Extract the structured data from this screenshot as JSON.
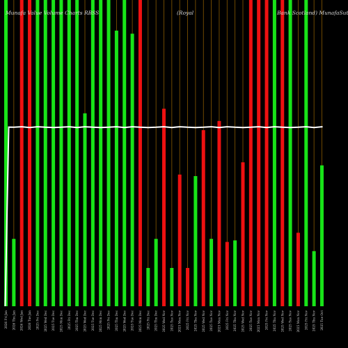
{
  "chart_data": {
    "type": "bar",
    "title_left": "Munafa Value Volume Charts RBSS",
    "title_center": "(Royal",
    "title_right": "Bank Scotland) MunafaSutra.com",
    "colors": {
      "up": "#18e418",
      "down": "#ee1111",
      "line": "#ffffff",
      "grid": "#8a5a00",
      "background": "#000000"
    },
    "ylim": [
      0,
      100
    ],
    "categories": [
      "2026 Fri Jan",
      "2026 Thu Jan",
      "2026 Wed Jan",
      "2026 Tue Jan",
      "2025 Fri Dec",
      "2025 Wed Dec",
      "2025 Tue Dec",
      "2025 Mon Dec",
      "2025 Fri Dec",
      "2025 Thu Dec",
      "2025 Wed Dec",
      "2025 Tue Dec",
      "2025 Mon Dec",
      "2025 Fri Dec",
      "2025 Thu Dec",
      "2025 Wed Dec",
      "2025 Tue Dec",
      "2025 Mon Dec",
      "2025 Fri Dec",
      "2025 Thu Dec",
      "2025 Wed Nov",
      "2025 Tue Nov",
      "2025 Mon Nov",
      "2025 Fri Nov",
      "2025 Thu Nov",
      "2025 Wed Nov",
      "2025 Tue Nov",
      "2025 Mon Nov",
      "2025 Fri Nov",
      "2025 Thu Nov",
      "2025 Wed Nov",
      "2025 Tue Nov",
      "2025 Mon Nov",
      "2025 Fri Nov",
      "2025 Thu Nov",
      "2025 Wed Nov",
      "2025 Tue Nov",
      "2025 Mon Nov",
      "2025 Fri Nov",
      "2025 Thu Nov",
      "2025 Tue Oct"
    ],
    "values": [
      100,
      22,
      100,
      100,
      100,
      100,
      100,
      100,
      100,
      100,
      63,
      100,
      100,
      100,
      90,
      100,
      89,
      100,
      12.5,
      22,
      64.5,
      12.5,
      43,
      12.5,
      42.5,
      57.5,
      22,
      60.5,
      21,
      21.5,
      47,
      100,
      100,
      100,
      100,
      100,
      100,
      24,
      100,
      18,
      46
    ],
    "up": [
      true,
      true,
      false,
      false,
      true,
      true,
      true,
      true,
      true,
      true,
      true,
      true,
      true,
      true,
      true,
      true,
      true,
      false,
      true,
      true,
      false,
      true,
      false,
      false,
      true,
      false,
      true,
      false,
      false,
      true,
      false,
      false,
      false,
      false,
      true,
      false,
      true,
      false,
      true,
      true,
      true
    ],
    "line_level": 58.5
  }
}
